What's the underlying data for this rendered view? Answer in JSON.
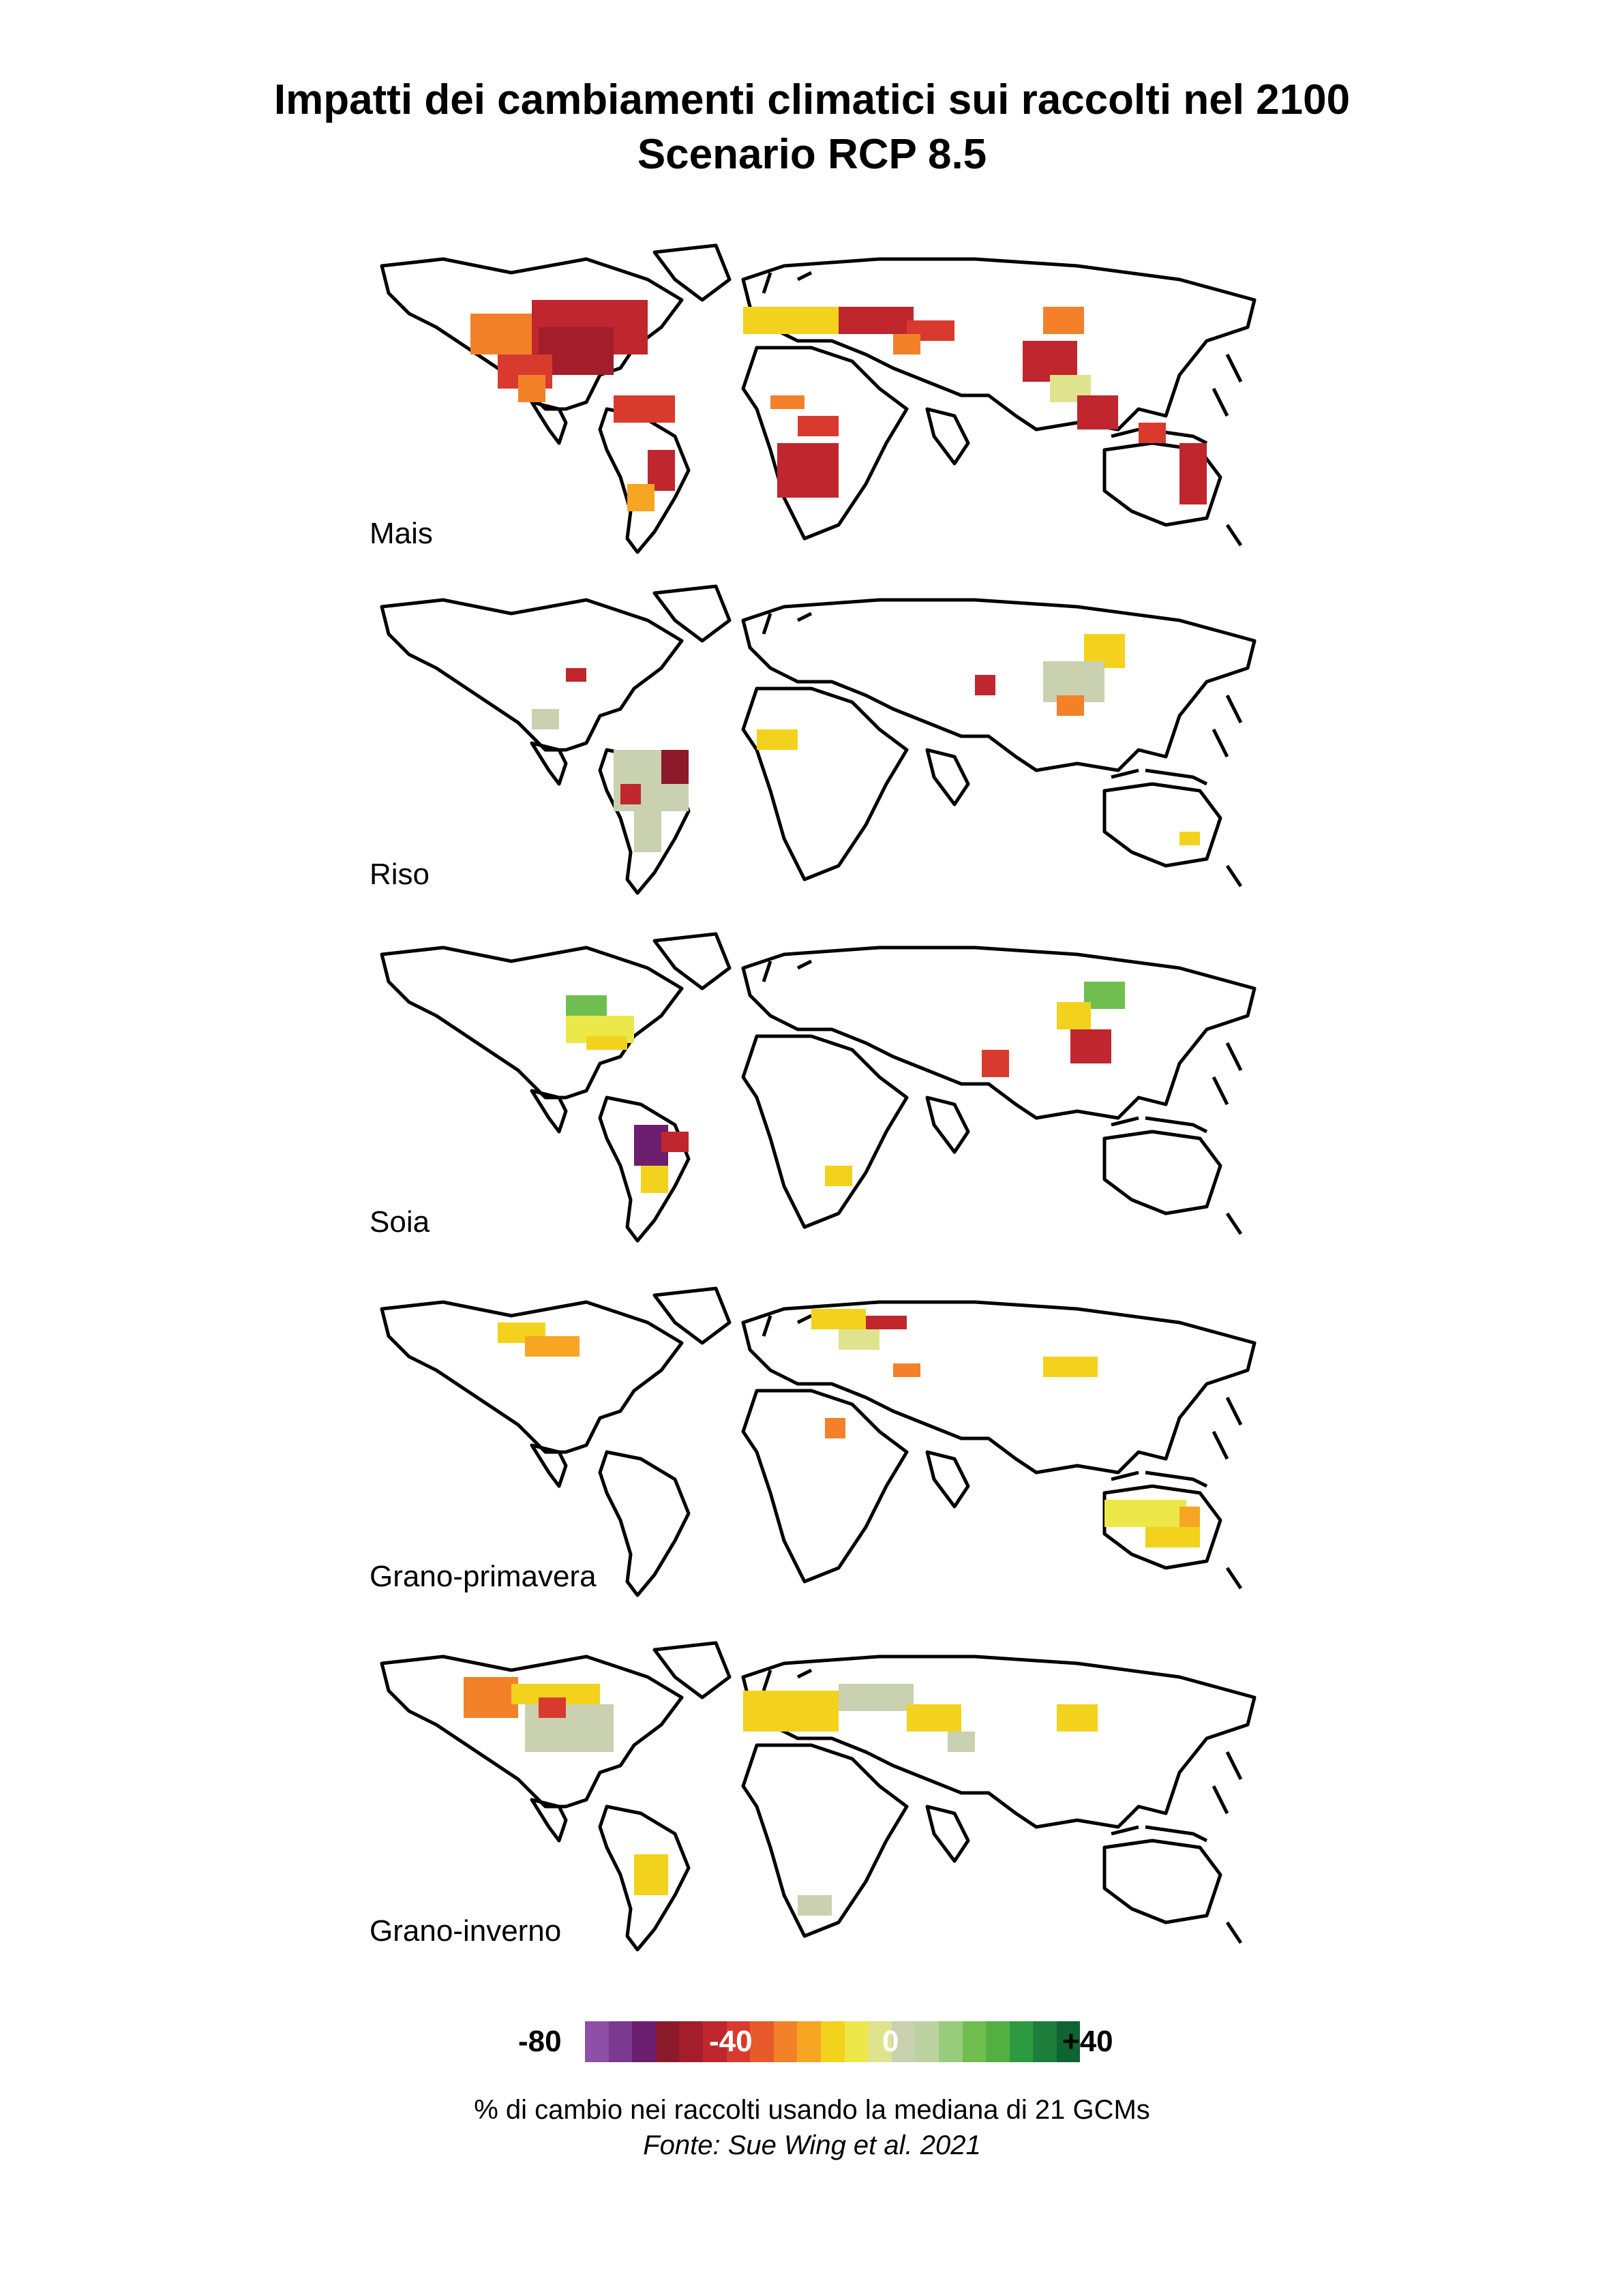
{
  "title": {
    "line1": "Impatti dei cambiamenti climatici sui raccolti nel 2100",
    "line2": "Scenario RCP 8.5"
  },
  "panels": [
    {
      "label": "Mais"
    },
    {
      "label": "Riso"
    },
    {
      "label": "Soia"
    },
    {
      "label": "Grano-primavera"
    },
    {
      "label": "Grano-inverno"
    }
  ],
  "legend": {
    "min_label": "-80",
    "mid_label": "-40",
    "zero_label": "0",
    "max_label": "+40",
    "colors": [
      "#8e4fa6",
      "#7a3a8f",
      "#6b1f6e",
      "#8b1a2a",
      "#a31d2a",
      "#c0262d",
      "#d83a2e",
      "#e85a2c",
      "#f2812a",
      "#f6a623",
      "#f3d21e",
      "#ece84a",
      "#dfe38e",
      "#c9d1b0",
      "#bcd2a0",
      "#98cb7c",
      "#6fbe4f",
      "#52b043",
      "#2e9a3f",
      "#1d7d3a",
      "#0e6532"
    ]
  },
  "caption": {
    "line1": "% di cambio nei raccolti usando la mediana di 21 GCMs",
    "line2": "Fonte: Sue Wing et al. 2021"
  }
}
